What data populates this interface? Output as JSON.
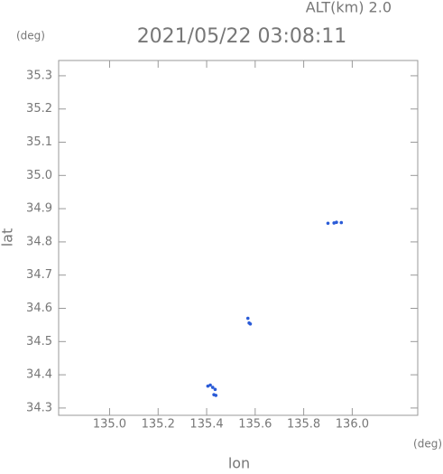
{
  "chart_data": {
    "type": "scatter",
    "title": "2021/05/22 03:08:11",
    "subtitle": "ALT(km) 2.0",
    "y_unit": "(deg)",
    "x_unit": "(deg)",
    "xlabel": "lon",
    "ylabel": "lat",
    "xlim": [
      134.79,
      136.27
    ],
    "ylim": [
      34.278,
      35.346
    ],
    "xticks": [
      {
        "value": 135,
        "label": "135.0"
      },
      135.2,
      135.4,
      135.6,
      135.8,
      {
        "value": 136,
        "label": "136.0"
      }
    ],
    "yticks": [
      34.3,
      34.4,
      34.5,
      34.6,
      34.7,
      34.8,
      34.9,
      {
        "value": 35,
        "label": "35.0"
      },
      35.1,
      35.2,
      35.3
    ],
    "series": [
      {
        "color": "#2a5bd7",
        "x": [
          135.405,
          135.415,
          135.425,
          135.435,
          135.43,
          135.438,
          135.57,
          135.575,
          135.58,
          135.9,
          135.925,
          135.935,
          135.955
        ],
        "values": [
          34.366,
          34.369,
          34.362,
          34.356,
          34.34,
          34.338,
          34.57,
          34.556,
          34.553,
          34.856,
          34.857,
          34.859,
          34.858
        ]
      }
    ]
  }
}
